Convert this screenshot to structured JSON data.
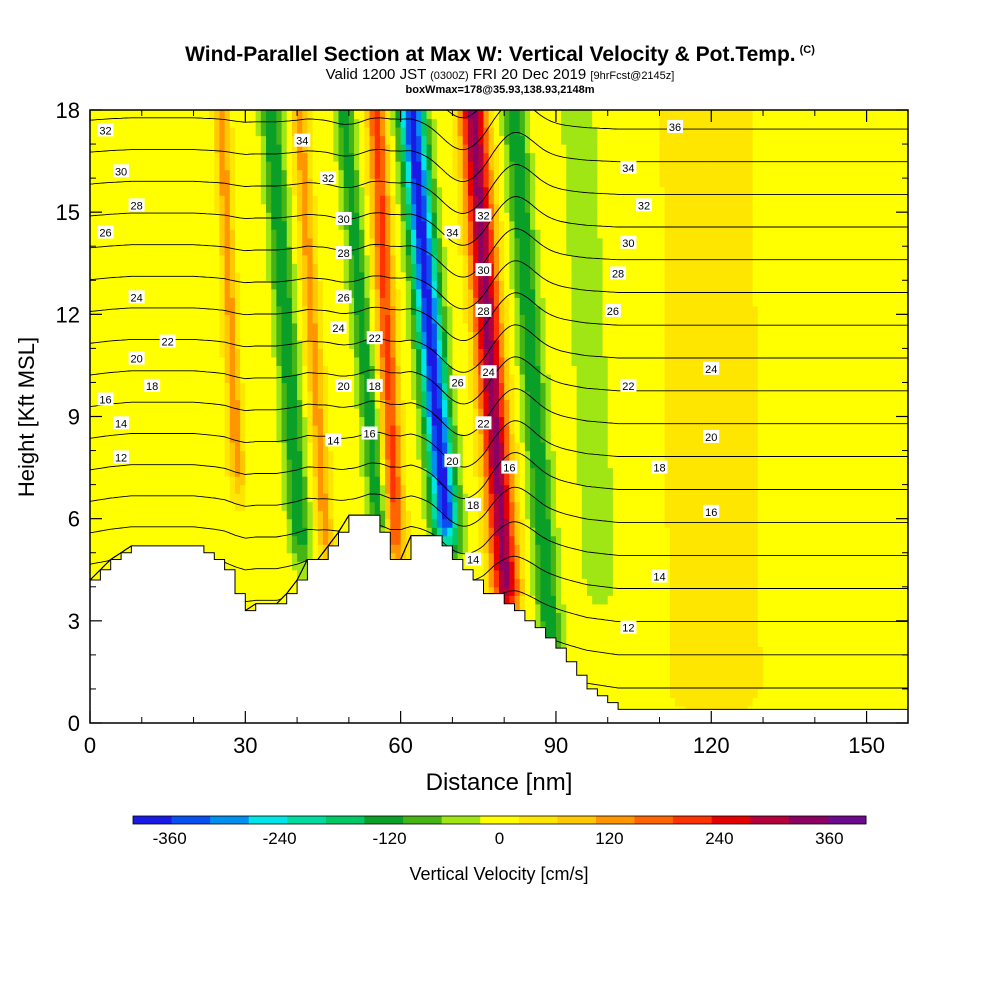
{
  "chart_data": {
    "type": "heatmap",
    "title": "Wind-Parallel Section at Max W: Vertical Velocity & Pot.Temp.",
    "title_suffix": "(C)",
    "subtitle": {
      "prefix": "Valid 1200 JST",
      "utc": "(0300Z)",
      "date": "FRI 20 Dec 2019",
      "forecast": "[9hrFcst@2145z]"
    },
    "detail": "boxWmax=178@35.93,138.93,2148m",
    "xlabel": "Distance [nm]",
    "ylabel": "Height [Kft MSL]",
    "xlim": [
      0,
      158
    ],
    "ylim": [
      0,
      18
    ],
    "x_ticks": [
      "0",
      "30",
      "60",
      "90",
      "120",
      "150"
    ],
    "y_ticks": [
      "0",
      "3",
      "6",
      "9",
      "12",
      "15",
      "18"
    ],
    "colorbar": {
      "label": "Vertical Velocity [cm/s]",
      "tick_labels": [
        "-360",
        "-240",
        "-120",
        "0",
        "120",
        "240",
        "360"
      ],
      "tick_values": [
        -360,
        -240,
        -120,
        0,
        120,
        240,
        360
      ],
      "range": [
        -400,
        400
      ],
      "colors": [
        "#1a1ae6",
        "#0a50f0",
        "#0090f0",
        "#00e6e6",
        "#00dca0",
        "#00c864",
        "#0aa028",
        "#46b414",
        "#a0e614",
        "#ffff00",
        "#ffe600",
        "#ffc800",
        "#ff9600",
        "#ff6400",
        "#ff3200",
        "#e60000",
        "#b4003c",
        "#8c0064",
        "#6e0a8c"
      ]
    },
    "terrain": {
      "x": [
        0,
        2,
        4,
        6,
        8,
        10,
        12,
        14,
        16,
        18,
        20,
        22,
        24,
        26,
        28,
        30,
        32,
        34,
        36,
        38,
        40,
        42,
        44,
        46,
        48,
        50,
        52,
        54,
        56,
        58,
        60,
        62,
        64,
        66,
        68,
        70,
        72,
        74,
        76,
        78,
        80,
        82,
        84,
        86,
        88,
        90,
        92,
        94,
        96,
        98,
        100,
        102,
        104,
        106,
        110,
        120,
        130,
        140,
        150,
        158
      ],
      "h": [
        4.2,
        4.5,
        4.8,
        5.0,
        5.2,
        5.2,
        5.2,
        5.2,
        5.2,
        5.2,
        5.2,
        5.0,
        4.8,
        4.5,
        3.8,
        3.3,
        3.5,
        3.5,
        3.5,
        3.8,
        4.2,
        4.8,
        4.8,
        5.2,
        5.6,
        6.1,
        6.1,
        6.1,
        5.6,
        4.8,
        4.8,
        5.5,
        5.5,
        5.5,
        5.2,
        4.8,
        4.5,
        4.2,
        3.8,
        3.8,
        3.5,
        3.3,
        3.0,
        2.8,
        2.5,
        2.2,
        1.8,
        1.4,
        1.0,
        0.8,
        0.6,
        0.4,
        0.4,
        0.4,
        0.4,
        0.4,
        0.4,
        0.4,
        0.4,
        0.4
      ]
    },
    "w_features": [
      {
        "x": 67,
        "slope": 0.55,
        "width": 2.5,
        "amp": -380,
        "ymin": 5.5,
        "note": "tilted downdraft core"
      },
      {
        "x": 78,
        "slope": 0.45,
        "width": 2.6,
        "amp": 330,
        "ymin": 3.5,
        "note": "tilted updraft core"
      },
      {
        "x": 58,
        "slope": 0.3,
        "width": 1.8,
        "amp": 200,
        "ymin": 5.0,
        "note": "secondary updraft"
      },
      {
        "x": 54,
        "slope": 0.55,
        "width": 1.8,
        "amp": -130,
        "ymin": 5.5,
        "note": "secondary downdraft"
      },
      {
        "x": 86,
        "slope": 0.45,
        "width": 2.2,
        "amp": -140,
        "ymin": 2.0,
        "note": "lee downdraft"
      },
      {
        "x": 44,
        "slope": 0.4,
        "width": 1.6,
        "amp": 120,
        "ymin": 5.0,
        "note": "upstream updraft"
      },
      {
        "x": 39,
        "slope": 0.45,
        "width": 2.0,
        "amp": -140,
        "ymin": 5.0,
        "note": "upstream downdraft"
      },
      {
        "x": 28,
        "slope": 0.3,
        "width": 1.4,
        "amp": 130,
        "ymin": 7.0,
        "note": "upstream updraft"
      },
      {
        "x": 97,
        "slope": 0.3,
        "width": 3.0,
        "amp": -60,
        "ymin": 4.0,
        "note": "lee downdraft"
      },
      {
        "x": 120,
        "slope": 0.1,
        "width": 9.0,
        "amp": 55,
        "ymin": 0.5,
        "note": "broad lee updraft"
      }
    ],
    "isentrope_labels": [
      {
        "text": "32",
        "x": 3,
        "y": 17.4
      },
      {
        "text": "30",
        "x": 6,
        "y": 16.2
      },
      {
        "text": "28",
        "x": 9,
        "y": 15.2
      },
      {
        "text": "26",
        "x": 3,
        "y": 14.4
      },
      {
        "text": "24",
        "x": 9,
        "y": 12.5
      },
      {
        "text": "22",
        "x": 15,
        "y": 11.2
      },
      {
        "text": "20",
        "x": 9,
        "y": 10.7
      },
      {
        "text": "18",
        "x": 12,
        "y": 9.9
      },
      {
        "text": "16",
        "x": 3,
        "y": 9.5
      },
      {
        "text": "14",
        "x": 6,
        "y": 8.8
      },
      {
        "text": "12",
        "x": 6,
        "y": 7.8
      },
      {
        "text": "34",
        "x": 41,
        "y": 17.1
      },
      {
        "text": "32",
        "x": 46,
        "y": 16.0
      },
      {
        "text": "30",
        "x": 49,
        "y": 14.8
      },
      {
        "text": "28",
        "x": 49,
        "y": 13.8
      },
      {
        "text": "26",
        "x": 49,
        "y": 12.5
      },
      {
        "text": "24",
        "x": 48,
        "y": 11.6
      },
      {
        "text": "22",
        "x": 55,
        "y": 11.3
      },
      {
        "text": "20",
        "x": 49,
        "y": 9.9
      },
      {
        "text": "18",
        "x": 55,
        "y": 9.9
      },
      {
        "text": "16",
        "x": 54,
        "y": 8.5
      },
      {
        "text": "14",
        "x": 47,
        "y": 8.3
      },
      {
        "text": "34",
        "x": 70,
        "y": 14.4
      },
      {
        "text": "32",
        "x": 76,
        "y": 14.9
      },
      {
        "text": "30",
        "x": 76,
        "y": 13.3
      },
      {
        "text": "28",
        "x": 76,
        "y": 12.1
      },
      {
        "text": "26",
        "x": 71,
        "y": 10.0
      },
      {
        "text": "24",
        "x": 77,
        "y": 10.3
      },
      {
        "text": "22",
        "x": 76,
        "y": 8.8
      },
      {
        "text": "20",
        "x": 70,
        "y": 7.7
      },
      {
        "text": "18",
        "x": 74,
        "y": 6.4
      },
      {
        "text": "16",
        "x": 81,
        "y": 7.5
      },
      {
        "text": "14",
        "x": 74,
        "y": 4.8
      },
      {
        "text": "36",
        "x": 113,
        "y": 17.5
      },
      {
        "text": "34",
        "x": 104,
        "y": 16.3
      },
      {
        "text": "32",
        "x": 107,
        "y": 15.2
      },
      {
        "text": "30",
        "x": 104,
        "y": 14.1
      },
      {
        "text": "28",
        "x": 102,
        "y": 13.2
      },
      {
        "text": "26",
        "x": 101,
        "y": 12.1
      },
      {
        "text": "24",
        "x": 120,
        "y": 10.4
      },
      {
        "text": "22",
        "x": 104,
        "y": 9.9
      },
      {
        "text": "20",
        "x": 120,
        "y": 8.4
      },
      {
        "text": "18",
        "x": 110,
        "y": 7.5
      },
      {
        "text": "16",
        "x": 120,
        "y": 6.2
      },
      {
        "text": "14",
        "x": 110,
        "y": 4.3
      },
      {
        "text": "12",
        "x": 104,
        "y": 2.8
      }
    ]
  }
}
